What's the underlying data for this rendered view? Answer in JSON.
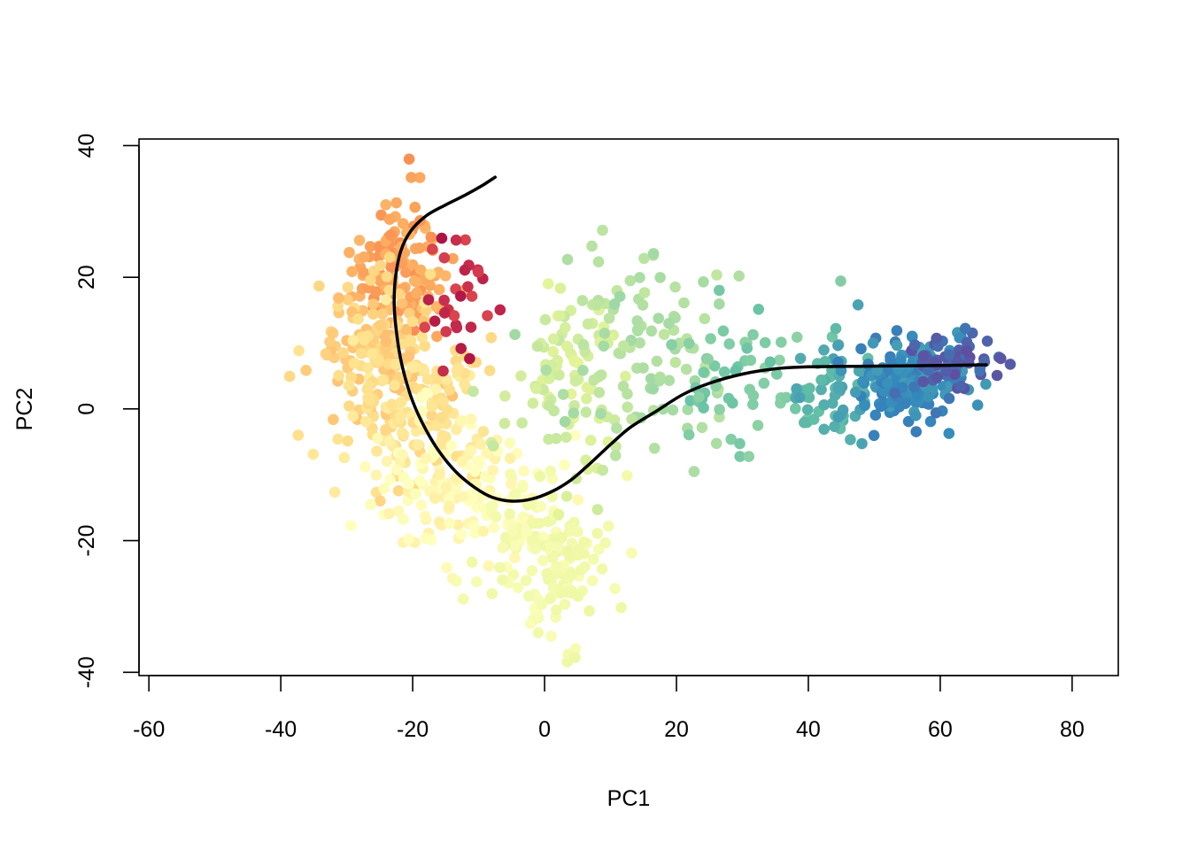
{
  "chart_data": {
    "type": "scatter",
    "title": "",
    "xlabel": "PC1",
    "ylabel": "PC2",
    "xlim": [
      -61.5,
      87
    ],
    "ylim": [
      -40.5,
      41
    ],
    "x_ticks": [
      -60,
      -40,
      -20,
      0,
      20,
      40,
      60,
      80
    ],
    "y_ticks": [
      -40,
      -20,
      0,
      20,
      40
    ],
    "x_tick_labels": [
      "-60",
      "-40",
      "-20",
      "0",
      "20",
      "40",
      "60",
      "80"
    ],
    "y_tick_labels": [
      "-40",
      "-20",
      "0",
      "20",
      "40"
    ],
    "grid": false,
    "legend": "none",
    "color_scale": "spectral",
    "colors": [
      "#9e0142",
      "#d53e4f",
      "#f46d43",
      "#fdae61",
      "#fee08b",
      "#ffffbf",
      "#e6f598",
      "#abdda4",
      "#66c2a5",
      "#3288bd",
      "#5e4fa2"
    ],
    "curve_color": "#000000",
    "clusters": [
      {
        "name": "c1",
        "center": [
          -22,
          22
        ],
        "spread": [
          3.5,
          5.5
        ],
        "count": 120,
        "color_t": [
          0.25,
          0.32
        ]
      },
      {
        "name": "c2",
        "center": [
          -25,
          10
        ],
        "spread": [
          4.5,
          5
        ],
        "count": 130,
        "color_t": [
          0.33,
          0.4
        ]
      },
      {
        "name": "c3",
        "center": [
          -20,
          0
        ],
        "spread": [
          6,
          6
        ],
        "count": 150,
        "color_t": [
          0.38,
          0.44
        ]
      },
      {
        "name": "c4",
        "center": [
          -14,
          -12
        ],
        "spread": [
          6,
          5
        ],
        "count": 140,
        "color_t": [
          0.45,
          0.52
        ]
      },
      {
        "name": "c5",
        "center": [
          0,
          -22
        ],
        "spread": [
          5,
          6
        ],
        "count": 150,
        "color_t": [
          0.52,
          0.57
        ]
      },
      {
        "name": "c6",
        "center": [
          -12,
          16
        ],
        "spread": [
          3,
          6
        ],
        "count": 30,
        "color_t": [
          0.03,
          0.12
        ]
      },
      {
        "name": "c7",
        "center": [
          3,
          5
        ],
        "spread": [
          5,
          8
        ],
        "count": 90,
        "color_t": [
          0.6,
          0.66
        ]
      },
      {
        "name": "c8",
        "center": [
          15,
          10
        ],
        "spread": [
          7,
          8
        ],
        "count": 100,
        "color_t": [
          0.66,
          0.72
        ]
      },
      {
        "name": "c9",
        "center": [
          30,
          5
        ],
        "spread": [
          6,
          6
        ],
        "count": 60,
        "color_t": [
          0.74,
          0.8
        ]
      },
      {
        "name": "c10",
        "center": [
          45,
          3
        ],
        "spread": [
          3,
          4
        ],
        "count": 60,
        "color_t": [
          0.8,
          0.86
        ]
      },
      {
        "name": "c11",
        "center": [
          55,
          4
        ],
        "spread": [
          4.5,
          3
        ],
        "count": 170,
        "color_t": [
          0.86,
          0.92
        ]
      },
      {
        "name": "c12",
        "center": [
          62,
          7
        ],
        "spread": [
          3,
          2.5
        ],
        "count": 60,
        "color_t": [
          0.93,
          1.0
        ]
      }
    ],
    "curve": [
      [
        -7.5,
        35.2
      ],
      [
        -9.5,
        33.9
      ],
      [
        -12,
        32.5
      ],
      [
        -15,
        31
      ],
      [
        -18,
        29.3
      ],
      [
        -20.3,
        27
      ],
      [
        -21.8,
        24
      ],
      [
        -22.6,
        20
      ],
      [
        -22.8,
        16
      ],
      [
        -22.5,
        12
      ],
      [
        -21.7,
        7
      ],
      [
        -20.3,
        2
      ],
      [
        -18.6,
        -2
      ],
      [
        -16.3,
        -6
      ],
      [
        -13.5,
        -9.5
      ],
      [
        -10.5,
        -12
      ],
      [
        -8,
        -13.4
      ],
      [
        -5,
        -14
      ],
      [
        -2,
        -13.7
      ],
      [
        1,
        -12.6
      ],
      [
        4,
        -10.8
      ],
      [
        7,
        -8.2
      ],
      [
        10,
        -5.4
      ],
      [
        13,
        -2.8
      ],
      [
        17,
        -0.3
      ],
      [
        21,
        2.2
      ],
      [
        25,
        3.9
      ],
      [
        30,
        5.3
      ],
      [
        35,
        6.1
      ],
      [
        40,
        6.4
      ],
      [
        50,
        6.5
      ],
      [
        60,
        6.6
      ],
      [
        67,
        6.7
      ]
    ]
  }
}
